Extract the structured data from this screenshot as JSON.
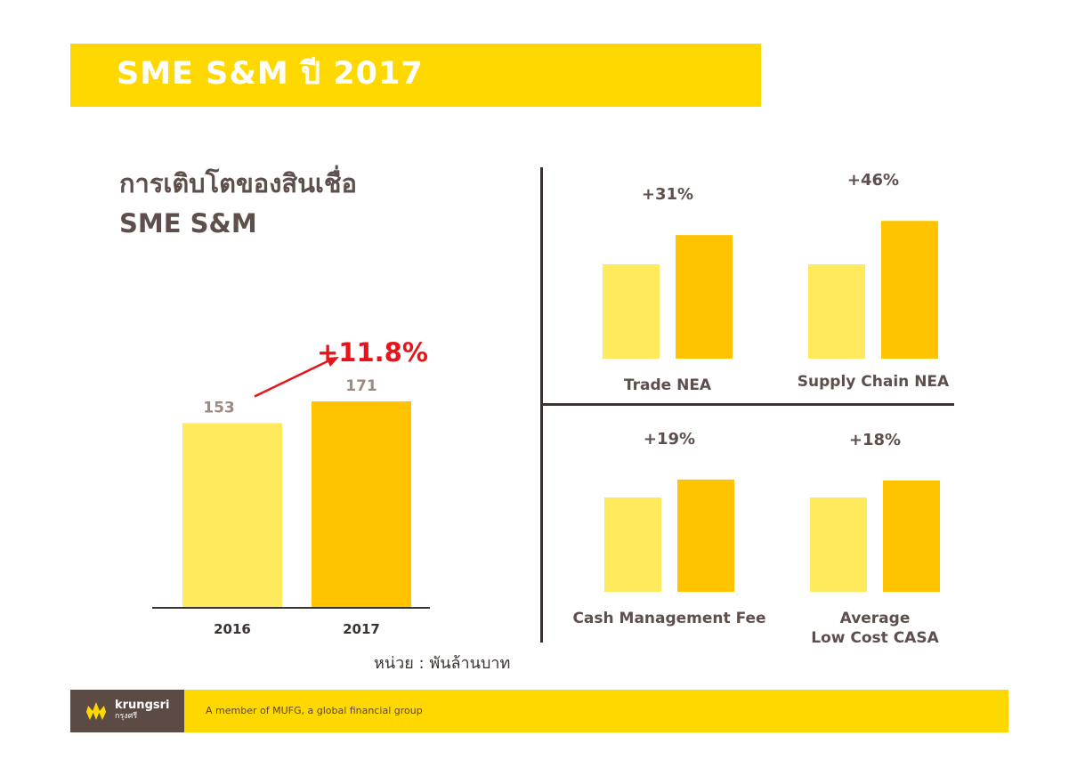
{
  "header": {
    "title": "SME S&M ปี 2017"
  },
  "main_chart": {
    "heading_line1": "การเติบโตของสินเชื่อ",
    "heading_line2": "SME S&M",
    "growth_label": "+11.8%",
    "unit_note": "หน่วย : พันล้านบาท"
  },
  "colors": {
    "bar_light": "#ffe95d",
    "bar_dark": "#ffc300",
    "text_dark": "#5e4f4d",
    "value_label": "#9e8882",
    "growth_red": "#e8141b",
    "brand_yellow": "#ffd800",
    "footer_brown": "#5c4a44"
  },
  "chart_data": [
    {
      "type": "bar",
      "categories": [
        "2016",
        "2017"
      ],
      "values": [
        153,
        171
      ],
      "growth": "+11.8%",
      "ylim": [
        0,
        230
      ]
    },
    {
      "type": "bar",
      "categories": [
        "Trade NEA"
      ],
      "series": [
        {
          "values": [
            1.0
          ]
        },
        {
          "values": [
            1.31
          ]
        }
      ],
      "growth": "+31%",
      "ylim": [
        0,
        1.6
      ]
    },
    {
      "type": "bar",
      "categories": [
        "Supply Chain NEA"
      ],
      "series": [
        {
          "values": [
            1.0
          ]
        },
        {
          "values": [
            1.46
          ]
        }
      ],
      "growth": "+46%",
      "ylim": [
        0,
        1.6
      ]
    },
    {
      "type": "bar",
      "categories": [
        "Cash Management Fee"
      ],
      "series": [
        {
          "values": [
            1.0
          ]
        },
        {
          "values": [
            1.19
          ]
        }
      ],
      "growth": "+19%",
      "ylim": [
        0,
        1.6
      ]
    },
    {
      "type": "bar",
      "categories": [
        "Average Low Cost CASA"
      ],
      "category_lines": [
        "Average",
        "Low Cost CASA"
      ],
      "series": [
        {
          "values": [
            1.0
          ]
        },
        {
          "values": [
            1.18
          ]
        }
      ],
      "growth": "+18%",
      "ylim": [
        0,
        1.6
      ]
    }
  ],
  "footer": {
    "brand": "krungsri",
    "brand_thai": "กรุงศรี",
    "tagline": "A member of MUFG, a global financial group"
  }
}
